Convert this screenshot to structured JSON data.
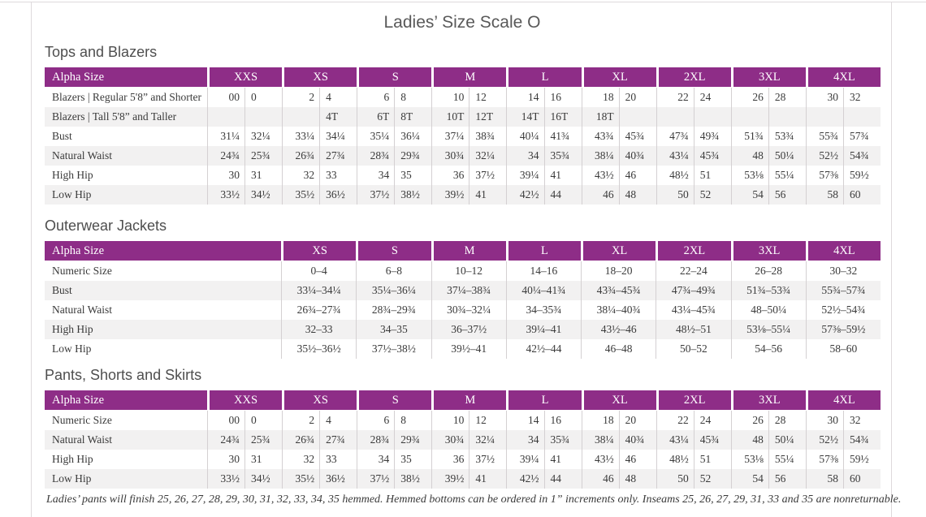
{
  "page": {
    "title": "Ladies’ Size Scale O",
    "footnote": "Ladies’ pants will finish 25, 26, 27, 28, 29, 30, 31, 32, 33, 34, 35 hemmed. Hemmed bottoms can be ordered in 1” increments only. Inseams 25, 26, 27, 29, 31, 33 and 35 are nonreturnable."
  },
  "colors": {
    "header_bg": "#8e2d87",
    "header_text": "#ffffff",
    "row_stripe": "#f2f1f1",
    "grid_line": "#d4d0d2",
    "body_text": "#3a3a3a",
    "heading_text": "#4e4e4e"
  },
  "tables": [
    {
      "heading": "Tops and Blazers",
      "layout": "split",
      "label_header": "Alpha Size",
      "size_headers": [
        "XXS",
        "XS",
        "S",
        "M",
        "L",
        "XL",
        "2XL",
        "3XL",
        "4XL"
      ],
      "rows": [
        {
          "label": "Blazers | Regular 5'8” and Shorter",
          "values": [
            "00",
            "0",
            "2",
            "4",
            "6",
            "8",
            "10",
            "12",
            "14",
            "16",
            "18",
            "20",
            "22",
            "24",
            "26",
            "28",
            "30",
            "32"
          ]
        },
        {
          "label": "Blazers | Tall 5'8” and Taller",
          "values": [
            "",
            "",
            "",
            "4T",
            "6T",
            "8T",
            "10T",
            "12T",
            "14T",
            "16T",
            "18T",
            "",
            "",
            "",
            "",
            "",
            "",
            ""
          ]
        },
        {
          "label": "Bust",
          "values": [
            "31¼",
            "32¼",
            "33¼",
            "34¼",
            "35¼",
            "36¼",
            "37¼",
            "38¾",
            "40¼",
            "41¾",
            "43¾",
            "45¾",
            "47¾",
            "49¾",
            "51¾",
            "53¾",
            "55¾",
            "57¾"
          ]
        },
        {
          "label": "Natural Waist",
          "values": [
            "24¾",
            "25¾",
            "26¾",
            "27¾",
            "28¾",
            "29¾",
            "30¾",
            "32¼",
            "34",
            "35¾",
            "38¼",
            "40¾",
            "43¼",
            "45¾",
            "48",
            "50¼",
            "52½",
            "54¾"
          ]
        },
        {
          "label": "High Hip",
          "values": [
            "30",
            "31",
            "32",
            "33",
            "34",
            "35",
            "36",
            "37½",
            "39¼",
            "41",
            "43½",
            "46",
            "48½",
            "51",
            "53⅛",
            "55¼",
            "57⅜",
            "59½"
          ]
        },
        {
          "label": "Low Hip",
          "values": [
            "33½",
            "34½",
            "35½",
            "36½",
            "37½",
            "38½",
            "39½",
            "41",
            "42½",
            "44",
            "46",
            "48",
            "50",
            "52",
            "54",
            "56",
            "58",
            "60"
          ]
        }
      ]
    },
    {
      "heading": "Outerwear Jackets",
      "layout": "single",
      "label_header": "Alpha Size",
      "size_headers": [
        "XS",
        "S",
        "M",
        "L",
        "XL",
        "2XL",
        "3XL",
        "4XL"
      ],
      "rows": [
        {
          "label": "Numeric Size",
          "values": [
            "0–4",
            "6–8",
            "10–12",
            "14–16",
            "18–20",
            "22–24",
            "26–28",
            "30–32"
          ]
        },
        {
          "label": "Bust",
          "values": [
            "33¼–34¼",
            "35¼–36¼",
            "37¼–38¾",
            "40¼–41¾",
            "43¾–45¾",
            "47¾–49¾",
            "51¾–53¾",
            "55¾–57¾"
          ]
        },
        {
          "label": "Natural Waist",
          "values": [
            "26¾–27¾",
            "28¾–29¾",
            "30¾–32¼",
            "34–35¾",
            "38¼–40¾",
            "43¼–45¾",
            "48–50¼",
            "52½–54¾"
          ]
        },
        {
          "label": "High Hip",
          "values": [
            "32–33",
            "34–35",
            "36–37½",
            "39¼–41",
            "43½–46",
            "48½–51",
            "53⅛–55¼",
            "57⅜–59½"
          ]
        },
        {
          "label": "Low Hip",
          "values": [
            "35½–36½",
            "37½–38½",
            "39½–41",
            "42½–44",
            "46–48",
            "50–52",
            "54–56",
            "58–60"
          ]
        }
      ]
    },
    {
      "heading": "Pants, Shorts and Skirts",
      "layout": "split",
      "label_header": "Alpha Size",
      "size_headers": [
        "XXS",
        "XS",
        "S",
        "M",
        "L",
        "XL",
        "2XL",
        "3XL",
        "4XL"
      ],
      "rows": [
        {
          "label": "Numeric Size",
          "values": [
            "00",
            "0",
            "2",
            "4",
            "6",
            "8",
            "10",
            "12",
            "14",
            "16",
            "18",
            "20",
            "22",
            "24",
            "26",
            "28",
            "30",
            "32"
          ]
        },
        {
          "label": "Natural Waist",
          "values": [
            "24¾",
            "25¾",
            "26¾",
            "27¾",
            "28¾",
            "29¾",
            "30¾",
            "32¼",
            "34",
            "35¾",
            "38¼",
            "40¾",
            "43¼",
            "45¾",
            "48",
            "50¼",
            "52½",
            "54¾"
          ]
        },
        {
          "label": "High Hip",
          "values": [
            "30",
            "31",
            "32",
            "33",
            "34",
            "35",
            "36",
            "37½",
            "39¼",
            "41",
            "43½",
            "46",
            "48½",
            "51",
            "53⅛",
            "55¼",
            "57⅜",
            "59½"
          ]
        },
        {
          "label": "Low Hip",
          "values": [
            "33½",
            "34½",
            "35½",
            "36½",
            "37½",
            "38½",
            "39½",
            "41",
            "42½",
            "44",
            "46",
            "48",
            "50",
            "52",
            "54",
            "56",
            "58",
            "60"
          ]
        }
      ]
    }
  ]
}
